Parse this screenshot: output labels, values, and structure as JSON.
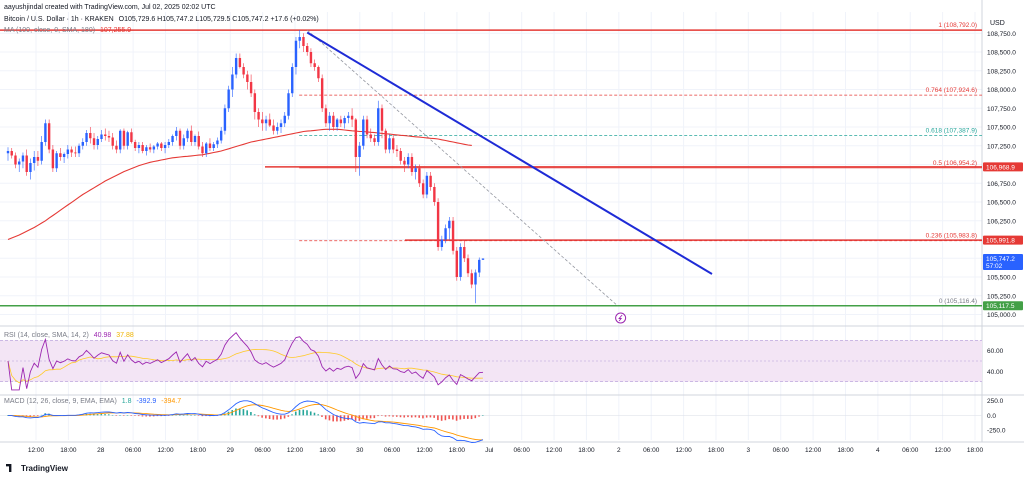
{
  "header": {
    "creator": "aayushjindal created with TradingView.com, Jul 02, 2025 02:02 UTC",
    "symbol": "Bitcoin / U.S. Dollar · 1h · KRAKEN",
    "ohlc": "O105,729.6 H105,747.2 L105,729.5 C105,747.2 +17.6 (+0.02%)",
    "ma_label": "MA (100, close, 0, SMA, 180)",
    "ma_value": "107,255.9",
    "currency": "USD"
  },
  "brand": {
    "name": "TradingView"
  },
  "colors": {
    "up": "#2962ff",
    "down": "#f23645",
    "ma": "#e53935",
    "trend": "#1e2bd6",
    "fib_hi": "#e53935",
    "fib_618": "#26a69a",
    "fib_low": "#089981",
    "rsi_band": "#e1bee7",
    "rsi_line": "#9c27b0",
    "rsi_ma": "#ffca28",
    "macd_line": "#2962ff",
    "signal_line": "#ff9800"
  },
  "chart_data": {
    "type": "candlestick",
    "ylim": [
      104900,
      108900
    ],
    "yticks": [
      "108,750.0",
      "108,500.0",
      "108,250.0",
      "108,000.0",
      "107,750.0",
      "107,500.0",
      "107,250.0",
      "107,000.0",
      "106,750.0",
      "106,500.0",
      "106,250.0",
      "106,000.0",
      "105,750.0",
      "105,500.0",
      "105,250.0",
      "105,000.0"
    ],
    "ytick_values": [
      108750,
      108500,
      108250,
      108000,
      107750,
      107500,
      107250,
      107000,
      106750,
      106500,
      106250,
      106000,
      105750,
      105500,
      105250,
      105000
    ],
    "xticks": [
      "12:00",
      "18:00",
      "28",
      "06:00",
      "12:00",
      "18:00",
      "29",
      "06:00",
      "12:00",
      "18:00",
      "30",
      "06:00",
      "12:00",
      "18:00",
      "Jul",
      "06:00",
      "12:00",
      "18:00",
      "2",
      "06:00",
      "12:00",
      "18:00",
      "3",
      "06:00",
      "12:00",
      "18:00",
      "4",
      "06:00",
      "12:00",
      "18:00"
    ],
    "candles": [
      [
        107150,
        107230,
        107050,
        107180
      ],
      [
        107180,
        107220,
        107080,
        107120
      ],
      [
        107120,
        107160,
        106950,
        107000
      ],
      [
        107000,
        107080,
        106900,
        107040
      ],
      [
        107040,
        107160,
        106950,
        107120
      ],
      [
        107120,
        107200,
        106850,
        106900
      ],
      [
        106900,
        107080,
        106800,
        107020
      ],
      [
        107020,
        107180,
        106920,
        107100
      ],
      [
        107100,
        107180,
        106980,
        107050
      ],
      [
        107050,
        107380,
        107000,
        107300
      ],
      [
        107300,
        107600,
        107250,
        107550
      ],
      [
        107550,
        107600,
        107150,
        107200
      ],
      [
        107200,
        107260,
        106900,
        106950
      ],
      [
        106950,
        107180,
        106900,
        107150
      ],
      [
        107150,
        107220,
        107050,
        107100
      ],
      [
        107100,
        107160,
        107020,
        107140
      ],
      [
        107140,
        107260,
        107080,
        107200
      ],
      [
        107200,
        107240,
        107100,
        107160
      ],
      [
        107160,
        107240,
        107100,
        107150
      ],
      [
        107150,
        107280,
        107100,
        107250
      ],
      [
        107250,
        107350,
        107200,
        107300
      ],
      [
        107300,
        107460,
        107250,
        107420
      ],
      [
        107420,
        107500,
        107280,
        107350
      ],
      [
        107350,
        107420,
        107200,
        107260
      ],
      [
        107260,
        107380,
        107200,
        107340
      ],
      [
        107340,
        107460,
        107300,
        107400
      ],
      [
        107400,
        107480,
        107320,
        107380
      ],
      [
        107380,
        107450,
        107300,
        107360
      ],
      [
        107360,
        107420,
        107200,
        107250
      ],
      [
        107250,
        107320,
        107150,
        107200
      ],
      [
        107200,
        107470,
        107150,
        107450
      ],
      [
        107450,
        107480,
        107200,
        107250
      ],
      [
        107250,
        107450,
        107200,
        107430
      ],
      [
        107430,
        107480,
        107280,
        107300
      ],
      [
        107300,
        107330,
        107180,
        107220
      ],
      [
        107220,
        107300,
        107150,
        107260
      ],
      [
        107260,
        107300,
        107150,
        107180
      ],
      [
        107180,
        107260,
        107120,
        107230
      ],
      [
        107230,
        107280,
        107160,
        107200
      ],
      [
        107200,
        107260,
        107150,
        107240
      ],
      [
        107240,
        107300,
        107200,
        107280
      ],
      [
        107280,
        107300,
        107180,
        107220
      ],
      [
        107220,
        107300,
        107150,
        107260
      ],
      [
        107260,
        107340,
        107220,
        107300
      ],
      [
        107300,
        107400,
        107250,
        107380
      ],
      [
        107380,
        107500,
        107320,
        107450
      ],
      [
        107450,
        107480,
        107200,
        107250
      ],
      [
        107250,
        107400,
        107200,
        107350
      ],
      [
        107350,
        107480,
        107300,
        107450
      ],
      [
        107450,
        107520,
        107250,
        107300
      ],
      [
        107300,
        107400,
        107250,
        107380
      ],
      [
        107380,
        107440,
        107200,
        107240
      ],
      [
        107240,
        107300,
        107100,
        107150
      ],
      [
        107150,
        107300,
        107100,
        107280
      ],
      [
        107280,
        107350,
        107180,
        107220
      ],
      [
        107220,
        107300,
        107180,
        107270
      ],
      [
        107270,
        107360,
        107220,
        107320
      ],
      [
        107320,
        107500,
        107280,
        107450
      ],
      [
        107450,
        107800,
        107400,
        107750
      ],
      [
        107750,
        108050,
        107700,
        108000
      ],
      [
        108000,
        108300,
        107900,
        108200
      ],
      [
        108200,
        108480,
        108150,
        108420
      ],
      [
        108420,
        108480,
        108280,
        108300
      ],
      [
        108300,
        108350,
        108150,
        108200
      ],
      [
        108200,
        108250,
        108000,
        108100
      ],
      [
        108100,
        108200,
        107900,
        107950
      ],
      [
        107950,
        108000,
        107600,
        107700
      ],
      [
        107700,
        107750,
        107500,
        107600
      ],
      [
        107600,
        107700,
        107450,
        107550
      ],
      [
        107550,
        107650,
        107450,
        107600
      ],
      [
        107600,
        107680,
        107500,
        107520
      ],
      [
        107520,
        107600,
        107400,
        107450
      ],
      [
        107450,
        107560,
        107400,
        107500
      ],
      [
        107500,
        107600,
        107420,
        107550
      ],
      [
        107550,
        107700,
        107500,
        107650
      ],
      [
        107650,
        108000,
        107600,
        107950
      ],
      [
        107950,
        108350,
        107900,
        108300
      ],
      [
        108300,
        108700,
        108200,
        108650
      ],
      [
        108650,
        108792,
        108550,
        108700
      ],
      [
        108700,
        108750,
        108500,
        108580
      ],
      [
        108580,
        108620,
        108450,
        108500
      ],
      [
        108500,
        108550,
        108300,
        108350
      ],
      [
        108350,
        108400,
        108250,
        108300
      ],
      [
        108300,
        108320,
        108100,
        108150
      ],
      [
        108150,
        108200,
        107700,
        107750
      ],
      [
        107750,
        107800,
        107500,
        107550
      ],
      [
        107550,
        107700,
        107450,
        107650
      ],
      [
        107650,
        107700,
        107450,
        107500
      ],
      [
        107500,
        107620,
        107450,
        107600
      ],
      [
        107600,
        107650,
        107500,
        107550
      ],
      [
        107550,
        107650,
        107480,
        107620
      ],
      [
        107620,
        107700,
        107550,
        107650
      ],
      [
        107650,
        107750,
        107500,
        107600
      ],
      [
        107600,
        107620,
        106900,
        107100
      ],
      [
        107100,
        107300,
        106850,
        107250
      ],
      [
        107250,
        107650,
        107200,
        107600
      ],
      [
        107600,
        107650,
        107350,
        107400
      ],
      [
        107400,
        107480,
        107300,
        107350
      ],
      [
        107350,
        107400,
        107250,
        107300
      ],
      [
        107300,
        107850,
        107250,
        107750
      ],
      [
        107750,
        107800,
        107350,
        107450
      ],
      [
        107450,
        107480,
        107150,
        107200
      ],
      [
        107200,
        107400,
        107150,
        107350
      ],
      [
        107350,
        107400,
        107150,
        107200
      ],
      [
        107200,
        107260,
        107100,
        107180
      ],
      [
        107180,
        107220,
        107000,
        107050
      ],
      [
        107050,
        107100,
        106900,
        107000
      ],
      [
        107000,
        107150,
        106950,
        107100
      ],
      [
        107100,
        107150,
        106850,
        106900
      ],
      [
        106900,
        107000,
        106800,
        106950
      ],
      [
        106950,
        107000,
        106700,
        106750
      ],
      [
        106750,
        106800,
        106550,
        106600
      ],
      [
        106600,
        106900,
        106550,
        106850
      ],
      [
        106850,
        106900,
        106650,
        106700
      ],
      [
        106700,
        106750,
        106450,
        106500
      ],
      [
        106500,
        106550,
        105850,
        105900
      ],
      [
        105900,
        106050,
        105850,
        106000
      ],
      [
        106000,
        106200,
        105950,
        106150
      ],
      [
        106150,
        106300,
        106000,
        106250
      ],
      [
        106250,
        106300,
        105800,
        105850
      ],
      [
        105850,
        105900,
        105450,
        105500
      ],
      [
        105500,
        105950,
        105450,
        105900
      ],
      [
        105900,
        106000,
        105700,
        105750
      ],
      [
        105750,
        105800,
        105500,
        105550
      ],
      [
        105550,
        105600,
        105350,
        105400
      ],
      [
        105400,
        105600,
        105150,
        105560
      ],
      [
        105560,
        105760,
        105500,
        105729
      ],
      [
        105729,
        105747,
        105729,
        105747
      ]
    ],
    "ma_series": [
      106000,
      106020,
      106040,
      106060,
      106085,
      106110,
      106135,
      106160,
      106190,
      106220,
      106250,
      106285,
      106320,
      106355,
      106390,
      106425,
      106460,
      106495,
      106530,
      106565,
      106600,
      106630,
      106660,
      106690,
      106720,
      106750,
      106780,
      106805,
      106830,
      106855,
      106880,
      106905,
      106925,
      106945,
      106965,
      106985,
      107000,
      107015,
      107030,
      107040,
      107050,
      107060,
      107070,
      107080,
      107090,
      107095,
      107100,
      107105,
      107110,
      107115,
      107120,
      107125,
      107130,
      107140,
      107150,
      107160,
      107170,
      107180,
      107195,
      107210,
      107225,
      107240,
      107255,
      107270,
      107285,
      107300,
      107310,
      107320,
      107330,
      107340,
      107350,
      107360,
      107370,
      107380,
      107390,
      107400,
      107410,
      107420,
      107430,
      107440,
      107445,
      107450,
      107455,
      107460,
      107465,
      107470,
      107470,
      107470,
      107470,
      107465,
      107460,
      107455,
      107450,
      107445,
      107440,
      107440,
      107435,
      107430,
      107425,
      107420,
      107415,
      107410,
      107405,
      107400,
      107395,
      107390,
      107385,
      107380,
      107375,
      107370,
      107365,
      107360,
      107355,
      107350,
      107345,
      107340,
      107330,
      107320,
      107310,
      107300,
      107290,
      107280,
      107270,
      107260,
      107255
    ],
    "fib": [
      {
        "ratio": "1",
        "value": 108792,
        "label": "1 (108,792.0)"
      },
      {
        "ratio": "0.764",
        "value": 107924.6,
        "label": "0.764 (107,924.6)"
      },
      {
        "ratio": "0.618",
        "value": 107387.9,
        "label": "0.618 (107,387.9)"
      },
      {
        "ratio": "0.5",
        "value": 106954.2,
        "label": "0.5 (106,954.2)"
      },
      {
        "ratio": "0.236",
        "value": 105983.8,
        "label": "0.236 (105,983.8)"
      },
      {
        "ratio": "0",
        "value": 105116.4,
        "label": "0 (105,116.4)"
      }
    ],
    "price_tags": [
      {
        "value": 106968.9,
        "label": "106,968.9",
        "kind": "resist"
      },
      {
        "value": 105991.8,
        "label": "105,991.8",
        "kind": "resist"
      },
      {
        "value": 105747.2,
        "label": "105,747.2",
        "sub": "57:02",
        "kind": "current"
      },
      {
        "value": 105117.5,
        "label": "105,117.5",
        "kind": "support"
      }
    ],
    "trendline": {
      "from_index": 80,
      "from_value": 108760,
      "to_index": 163,
      "to_value": 105540
    },
    "rsi": {
      "label": "RSI (14, close, SMA, 14, 2)",
      "value": "40.98",
      "ma_value": "37.88",
      "ylim": [
        20,
        80
      ],
      "ticks": [
        "60.00",
        "40.00"
      ],
      "tick_values": [
        60,
        40
      ],
      "band": [
        30,
        70
      ]
    },
    "macd": {
      "label": "MACD (12, 26, close, 9, EMA, EMA)",
      "hist": "1.8",
      "macd": "-392.9",
      "signal": "-394.7",
      "ylim": [
        -420,
        330
      ],
      "ticks": [
        "250.0",
        "0.0",
        "-250.0"
      ],
      "tick_values": [
        250,
        0,
        -250
      ]
    }
  }
}
